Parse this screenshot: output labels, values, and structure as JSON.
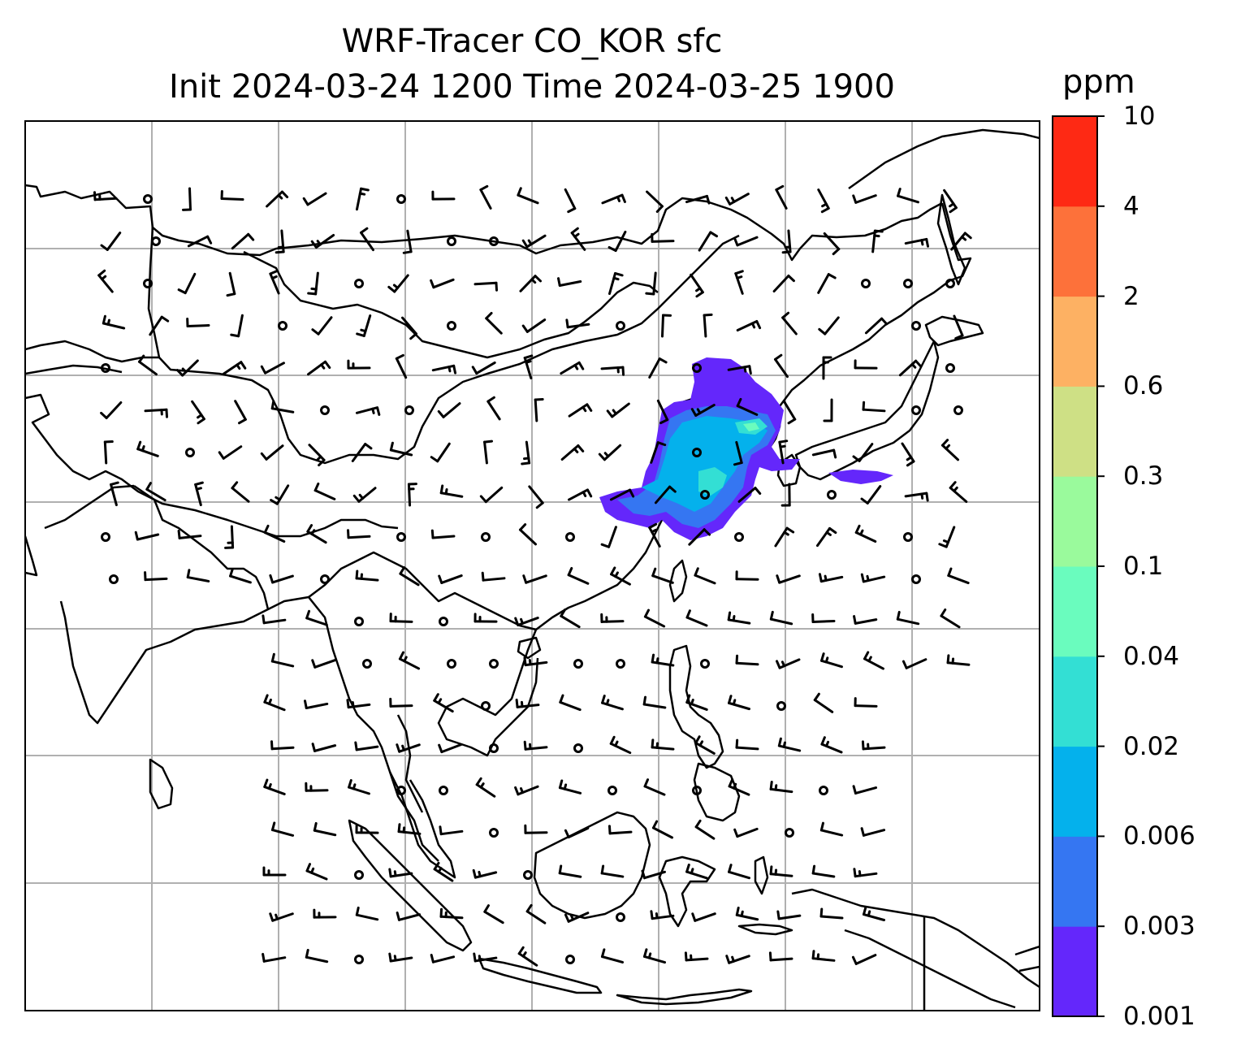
{
  "title": {
    "line1": "WRF-Tracer CO_KOR sfc",
    "line2": "Init 2024-03-24 1200 Time 2024-03-25 1900"
  },
  "colorbar": {
    "unit": "ppm",
    "levels": [
      "0.001",
      "0.003",
      "0.006",
      "0.02",
      "0.04",
      "0.1",
      "0.3",
      "0.6",
      "2",
      "4",
      "10"
    ],
    "colors": [
      "#6427fb",
      "#3576f2",
      "#04b1ec",
      "#33dfd4",
      "#6afcbe",
      "#9afa9c",
      "#cee085",
      "#fdb163",
      "#fd713a",
      "#fe2914"
    ]
  },
  "map": {
    "gridline_color": "#b0b0b0",
    "coastline_color": "#000000",
    "tracer_field": "CO_KOR",
    "wind_symbols": "barbs"
  }
}
